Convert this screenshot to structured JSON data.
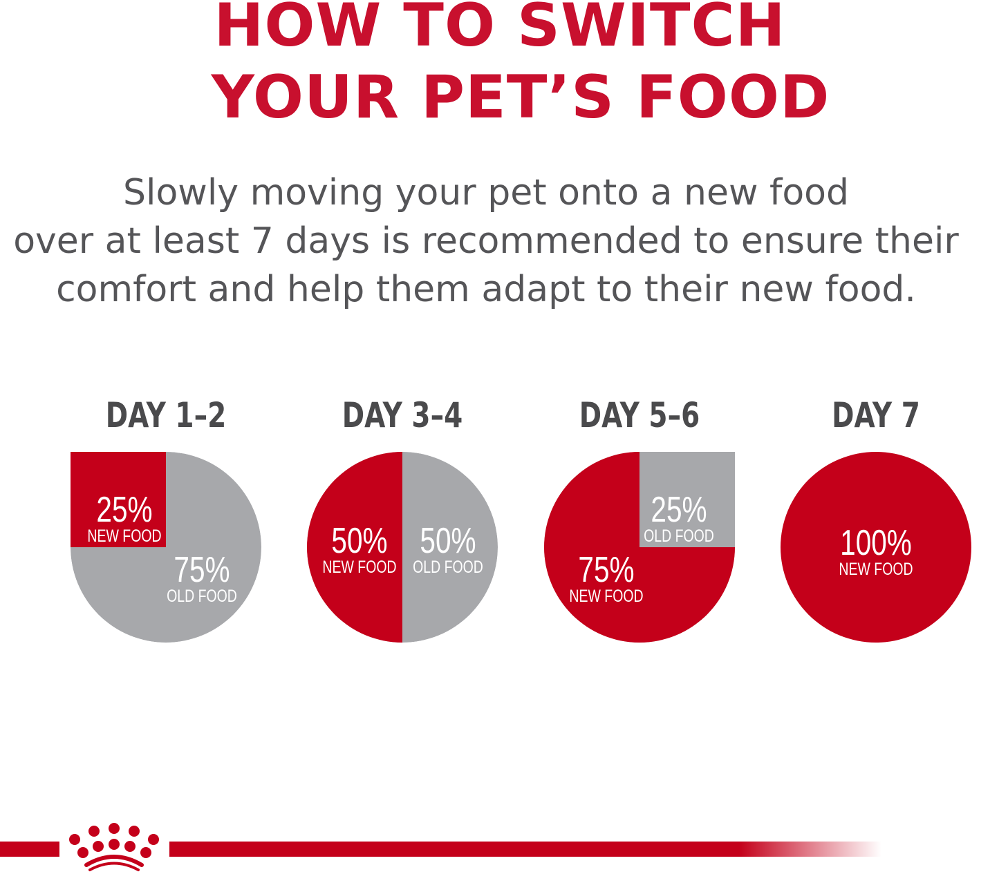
{
  "title": {
    "line1": "HOW TO SWITCH",
    "line2": "YOUR PET’S FOOD"
  },
  "subtitle": {
    "line1": "Slowly moving your pet onto a new food",
    "line2": "over at least 7 days is recommended to ensure their",
    "line3": "comfort and help them adapt to their new food."
  },
  "colors": {
    "brand_red": "#c4001a",
    "gray": "#a7a8ab",
    "title_red": "#c8102e",
    "text_gray": "#555558"
  },
  "chart_data": [
    {
      "type": "pie",
      "title": "DAY 1–2",
      "slices": [
        {
          "label": "NEW FOOD",
          "value": 25,
          "value_label": "25%",
          "color": "#c4001a"
        },
        {
          "label": "OLD FOOD",
          "value": 75,
          "value_label": "75%",
          "color": "#a7a8ab"
        }
      ]
    },
    {
      "type": "pie",
      "title": "DAY 3–4",
      "slices": [
        {
          "label": "NEW FOOD",
          "value": 50,
          "value_label": "50%",
          "color": "#c4001a"
        },
        {
          "label": "OLD FOOD",
          "value": 50,
          "value_label": "50%",
          "color": "#a7a8ab"
        }
      ]
    },
    {
      "type": "pie",
      "title": "DAY 5–6",
      "slices": [
        {
          "label": "NEW FOOD",
          "value": 75,
          "value_label": "75%",
          "color": "#c4001a"
        },
        {
          "label": "OLD FOOD",
          "value": 25,
          "value_label": "25%",
          "color": "#a7a8ab"
        }
      ]
    },
    {
      "type": "pie",
      "title": "DAY 7",
      "slices": [
        {
          "label": "NEW FOOD",
          "value": 100,
          "value_label": "100%",
          "color": "#c4001a"
        }
      ]
    }
  ],
  "logo": {
    "icon": "crown-icon"
  }
}
